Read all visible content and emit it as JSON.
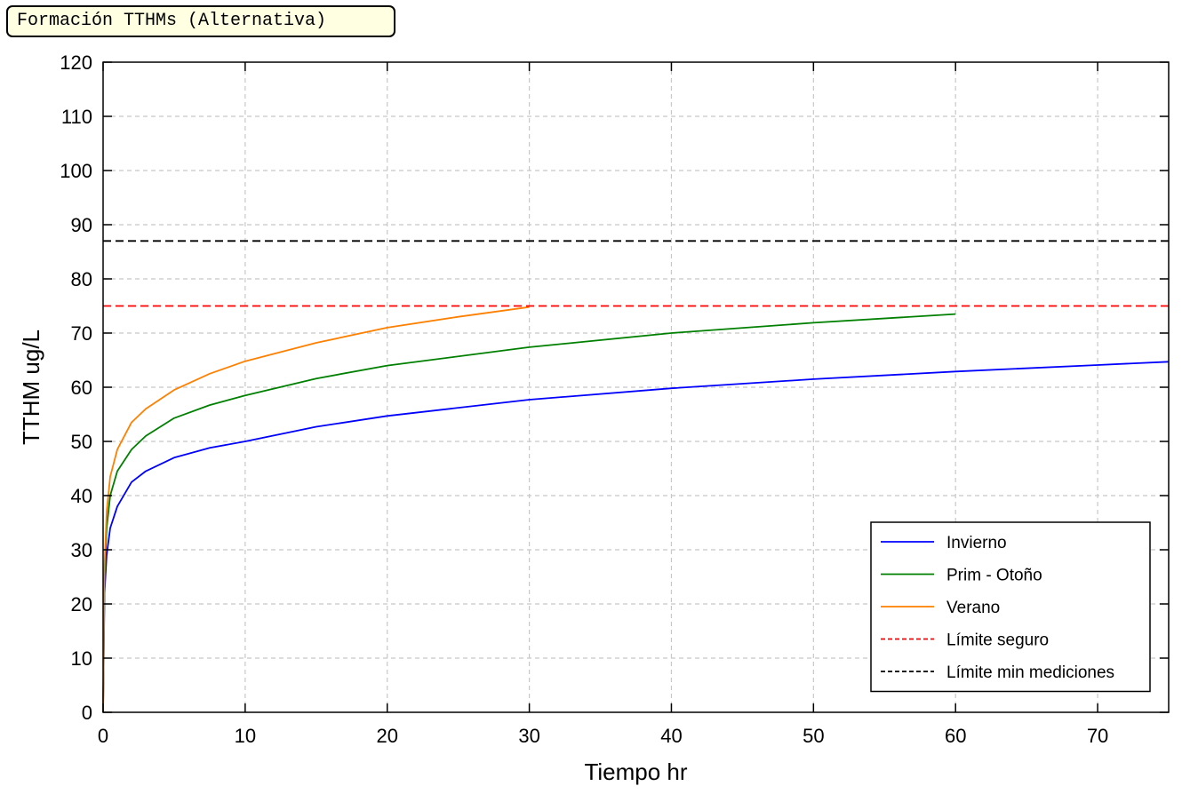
{
  "title_box": {
    "text": "Formación TTHMs (Alternativa)"
  },
  "chart_data": {
    "type": "line",
    "title": "",
    "xlabel": "Tiempo hr",
    "ylabel": "TTHM ug/L",
    "xlim": [
      0,
      75
    ],
    "ylim": [
      0,
      120
    ],
    "xticks": [
      0,
      10,
      20,
      30,
      40,
      50,
      60,
      70
    ],
    "yticks": [
      0,
      10,
      20,
      30,
      40,
      50,
      60,
      70,
      80,
      90,
      100,
      110,
      120
    ],
    "grid": true,
    "legend_position": "bottom-right",
    "series": [
      {
        "name": "Invierno",
        "color": "#0000ff",
        "style": "solid",
        "x": [
          0,
          0.1,
          0.25,
          0.5,
          1,
          2,
          3,
          5,
          7.5,
          10,
          15,
          20,
          30,
          40,
          50,
          60,
          70,
          75
        ],
        "y": [
          0,
          22,
          29,
          34,
          38,
          42.5,
          44.5,
          47,
          48.8,
          50,
          52.7,
          54.7,
          57.7,
          59.8,
          61.5,
          62.9,
          64.1,
          64.7
        ]
      },
      {
        "name": "Prim - Otoño",
        "color": "#008000",
        "style": "solid",
        "x": [
          0,
          0.1,
          0.25,
          0.5,
          1,
          2,
          3,
          5,
          7.5,
          10,
          15,
          20,
          30,
          40,
          50,
          60
        ],
        "y": [
          0,
          25,
          34,
          40,
          44.5,
          48.5,
          51,
          54.3,
          56.7,
          58.5,
          61.6,
          64,
          67.4,
          70,
          71.9,
          73.5
        ]
      },
      {
        "name": "Verano",
        "color": "#ff8000",
        "style": "solid",
        "x": [
          0,
          0.1,
          0.25,
          0.5,
          1,
          2,
          3,
          5,
          7.5,
          10,
          15,
          20,
          25,
          30
        ],
        "y": [
          0,
          27,
          37,
          43.5,
          48.5,
          53.5,
          56,
          59.5,
          62.5,
          64.8,
          68.2,
          71,
          73,
          74.8
        ]
      },
      {
        "name": "Límite seguro",
        "color": "#ff0000",
        "style": "dashed",
        "x": [
          0,
          75
        ],
        "y": [
          75,
          75
        ]
      },
      {
        "name": "Límite min mediciones",
        "color": "#000000",
        "style": "dashed",
        "x": [
          0,
          75
        ],
        "y": [
          87,
          87
        ]
      }
    ]
  }
}
